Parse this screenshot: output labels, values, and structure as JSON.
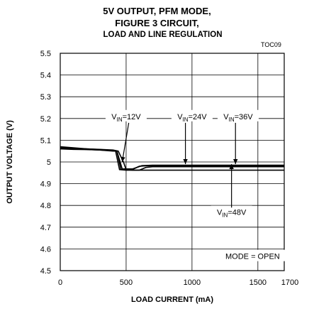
{
  "chart_data": {
    "type": "line",
    "title_lines": [
      "5V OUTPUT, PFM MODE,",
      "FIGURE 3 CIRCUIT,",
      "LOAD AND LINE REGULATION"
    ],
    "figure_code": "TOC09",
    "xlabel": "LOAD CURRENT (mA)",
    "ylabel": "OUTPUT VOLTAGE (V)",
    "xlim": [
      0,
      1700
    ],
    "ylim": [
      4.5,
      5.5
    ],
    "xticks": [
      0,
      500,
      1000,
      1500,
      1700
    ],
    "yticks": [
      4.5,
      4.6,
      4.7,
      4.8,
      4.9,
      5,
      5.1,
      5.2,
      5.3,
      5.4,
      5.5
    ],
    "grid": true,
    "series": [
      {
        "name": "VIN=12V",
        "x": [
          0,
          100,
          200,
          300,
          400,
          440,
          480,
          500,
          550,
          600,
          650,
          1700
        ],
        "y": [
          5.07,
          5.065,
          5.06,
          5.058,
          5.055,
          5.05,
          5.0,
          4.965,
          4.962,
          4.962,
          4.962,
          4.962
        ]
      },
      {
        "name": "VIN=24V",
        "x": [
          0,
          100,
          200,
          300,
          400,
          420,
          450,
          500,
          600,
          650,
          700,
          1700
        ],
        "y": [
          5.06,
          5.058,
          5.057,
          5.055,
          5.05,
          5.05,
          4.965,
          4.962,
          4.962,
          4.975,
          4.978,
          4.978
        ]
      },
      {
        "name": "VIN=36V",
        "x": [
          0,
          100,
          200,
          300,
          400,
          430,
          460,
          550,
          600,
          650,
          1700
        ],
        "y": [
          5.065,
          5.06,
          5.058,
          5.055,
          5.052,
          5.05,
          4.966,
          4.966,
          4.98,
          4.982,
          4.982
        ]
      },
      {
        "name": "VIN=48V",
        "x": [
          0,
          100,
          200,
          300,
          400,
          430,
          470,
          550,
          620,
          700,
          1700
        ],
        "y": [
          5.068,
          5.062,
          5.06,
          5.057,
          5.053,
          5.05,
          4.968,
          4.968,
          4.983,
          4.985,
          4.985
        ]
      }
    ],
    "annotations": [
      {
        "parts": [
          "V",
          "IN",
          "=12V"
        ],
        "x": 500,
        "y": 5.2
      },
      {
        "parts": [
          "V",
          "IN",
          "=24V"
        ],
        "x": 1000,
        "y": 5.2
      },
      {
        "parts": [
          "V",
          "IN",
          "=36V"
        ],
        "x": 1350,
        "y": 5.2
      },
      {
        "parts": [
          "V",
          "IN",
          "=48V"
        ],
        "x": 1300,
        "y": 4.76
      },
      {
        "text": "MODE = OPEN",
        "x": 1460,
        "y": 4.56
      }
    ]
  }
}
